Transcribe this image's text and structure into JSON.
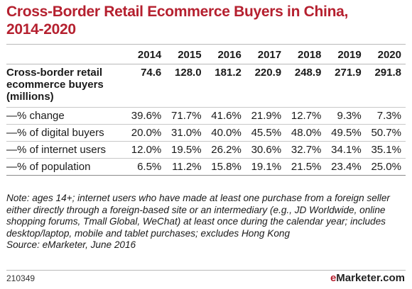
{
  "chart_data": {
    "type": "table",
    "title_line1": "Cross-Border Retail Ecommerce Buyers in China,",
    "title_line2": "2014-2020",
    "columns": [
      "2014",
      "2015",
      "2016",
      "2017",
      "2018",
      "2019",
      "2020"
    ],
    "rows": [
      {
        "label": "Cross-border retail ecommerce buyers (millions)",
        "values": [
          "74.6",
          "128.0",
          "181.2",
          "220.9",
          "248.9",
          "271.9",
          "291.8"
        ]
      },
      {
        "label": "—% change",
        "values": [
          "39.6%",
          "71.7%",
          "41.6%",
          "21.9%",
          "12.7%",
          "9.3%",
          "7.3%"
        ]
      },
      {
        "label": "—% of digital buyers",
        "values": [
          "20.0%",
          "31.0%",
          "40.0%",
          "45.5%",
          "48.0%",
          "49.5%",
          "50.7%"
        ]
      },
      {
        "label": "—% of internet users",
        "values": [
          "12.0%",
          "19.5%",
          "26.2%",
          "30.6%",
          "32.7%",
          "34.1%",
          "35.1%"
        ]
      },
      {
        "label": "—% of population",
        "values": [
          "6.5%",
          "11.2%",
          "15.8%",
          "19.1%",
          "21.5%",
          "23.4%",
          "25.0%"
        ]
      }
    ],
    "note": "Note: ages 14+; internet users who have made at least one purchase from a foreign seller either directly through a foreign-based site or an intermediary (e.g., JD Worldwide, online shopping forums, Tmall Global, WeChat) at least once during the calendar year; includes desktop/laptop, mobile and tablet purchases; excludes Hong Kong",
    "source": "Source: eMarketer, June 2016",
    "chart_id": "210349",
    "brand_prefix": "e",
    "brand_rest": "Marketer.com"
  }
}
